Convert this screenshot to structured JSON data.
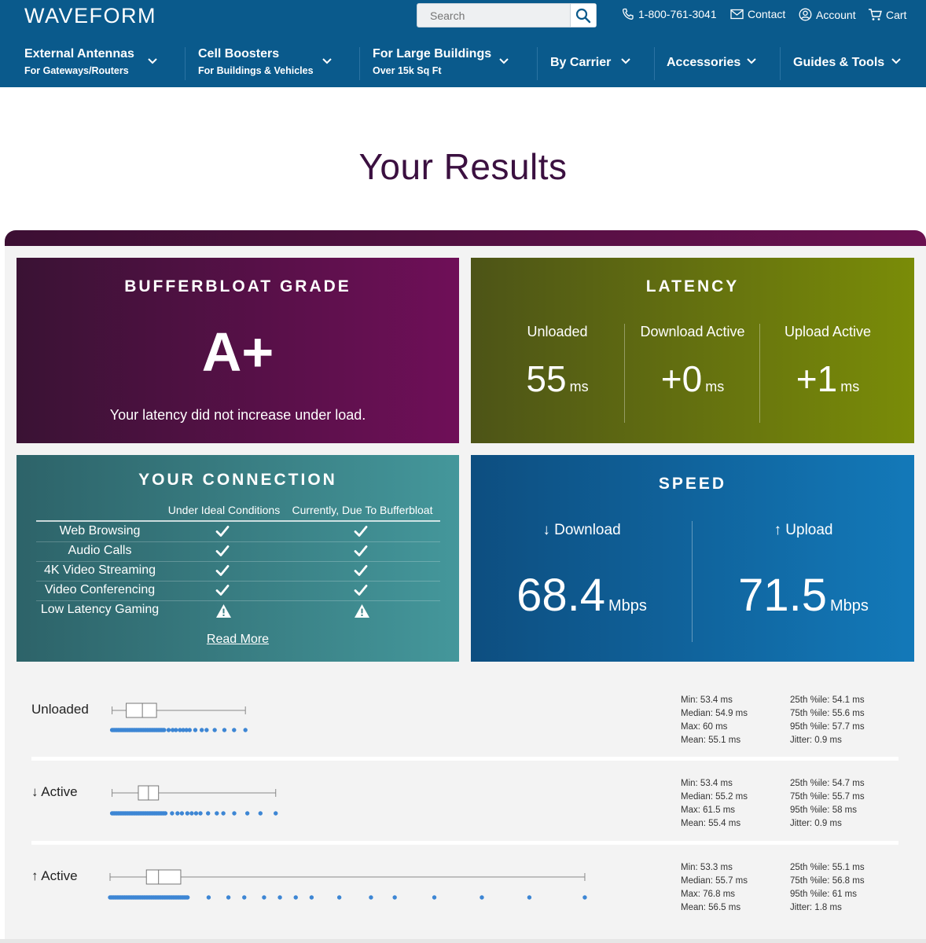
{
  "header": {
    "logo": "WAVEFORM",
    "search_placeholder": "Search",
    "phone": "1-800-761-3041",
    "contact": "Contact",
    "account": "Account",
    "cart": "Cart",
    "nav": [
      {
        "title": "External Antennas",
        "subtitle": "For Gateways/Routers"
      },
      {
        "title": "Cell Boosters",
        "subtitle": "For Buildings & Vehicles"
      },
      {
        "title": "For Large Buildings",
        "subtitle": "Over 15k Sq Ft"
      },
      {
        "title": "By Carrier",
        "subtitle": ""
      },
      {
        "title": "Accessories",
        "subtitle": ""
      },
      {
        "title": "Guides & Tools",
        "subtitle": ""
      }
    ]
  },
  "page_title": "Your Results",
  "grade": {
    "title": "BUFFERBLOAT GRADE",
    "value": "A+",
    "description": "Your latency did not increase under load."
  },
  "latency": {
    "title": "LATENCY",
    "columns": [
      {
        "label": "Unloaded",
        "value": "55",
        "unit": "ms"
      },
      {
        "label": "Download Active",
        "value": "+0",
        "unit": "ms"
      },
      {
        "label": "Upload Active",
        "value": "+1",
        "unit": "ms"
      }
    ]
  },
  "connection": {
    "title": "YOUR CONNECTION",
    "col_ideal": "Under Ideal Conditions",
    "col_current": "Currently, Due To Bufferbloat",
    "rows": [
      {
        "label": "Web Browsing",
        "ideal": "check",
        "current": "check"
      },
      {
        "label": "Audio Calls",
        "ideal": "check",
        "current": "check"
      },
      {
        "label": "4K Video Streaming",
        "ideal": "check",
        "current": "check"
      },
      {
        "label": "Video Conferencing",
        "ideal": "check",
        "current": "check"
      },
      {
        "label": "Low Latency Gaming",
        "ideal": "warning",
        "current": "warning"
      }
    ],
    "read_more": "Read More"
  },
  "speed": {
    "title": "SPEED",
    "download": {
      "label": "↓ Download",
      "value": "68.4",
      "unit": "Mbps"
    },
    "upload": {
      "label": "↑ Upload",
      "value": "71.5",
      "unit": "Mbps"
    }
  },
  "latency_plots": [
    {
      "label": "Unloaded",
      "stats_left": [
        "Min: 53.4 ms",
        "Median: 54.9 ms",
        "Max: 60 ms",
        "Mean: 55.1 ms"
      ],
      "stats_right": [
        "25th %ile: 54.1 ms",
        "75th %ile: 55.6 ms",
        "95th %ile: 57.7 ms",
        "Jitter: 0.9 ms"
      ]
    },
    {
      "label": "↓ Active",
      "stats_left": [
        "Min: 53.4 ms",
        "Median: 55.2 ms",
        "Max: 61.5 ms",
        "Mean: 55.4 ms"
      ],
      "stats_right": [
        "25th %ile: 54.7 ms",
        "75th %ile: 55.7 ms",
        "95th %ile: 58 ms",
        "Jitter: 0.9 ms"
      ]
    },
    {
      "label": "↑ Active",
      "stats_left": [
        "Min: 53.3 ms",
        "Median: 55.7 ms",
        "Max: 76.8 ms",
        "Mean: 56.5 ms"
      ],
      "stats_right": [
        "25th %ile: 55.1 ms",
        "75th %ile: 56.8 ms",
        "95th %ile: 61 ms",
        "Jitter: 1.8 ms"
      ]
    }
  ],
  "colors": {
    "header_bg": "#0a5a8c",
    "title": "#3b1040",
    "point": "#3d86d4"
  }
}
